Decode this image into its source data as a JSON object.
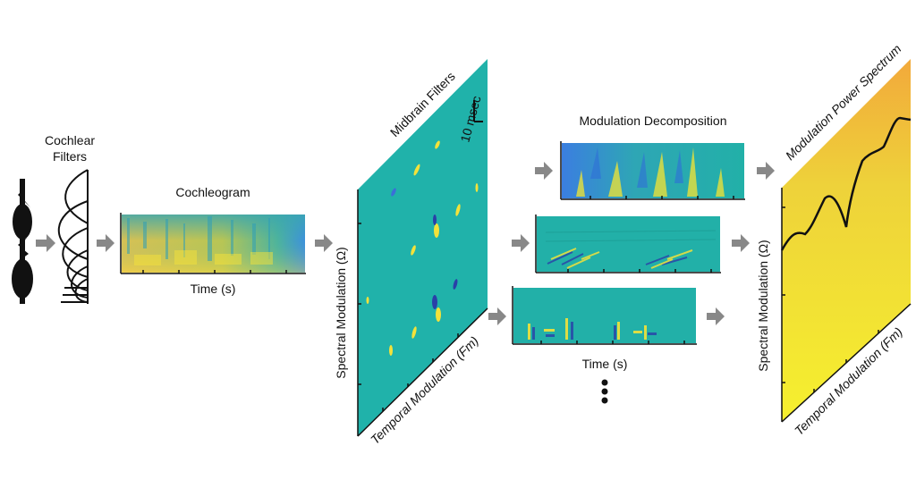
{
  "labels": {
    "cochlear_filters_line1": "Cochlear",
    "cochlear_filters_line2": "Filters",
    "cochleogram": "Cochleogram",
    "time_axis": "Time (s)",
    "midbrain_filters": "Midbrain Filters",
    "scale_bar": "10 msec",
    "spectral_modulation": "Spectral Modulation (Ω)",
    "temporal_modulation": "Temporal Modulation (Fm)",
    "modulation_decomposition": "Modulation Decomposition",
    "decomposition_time_axis": "Time (s)",
    "modulation_power_spectrum": "Modulation Power Spectrum",
    "mps_spectral_modulation": "Spectral Modulation (Ω)",
    "mps_temporal_modulation": "Temporal Modulation (Fm)"
  },
  "colors": {
    "teal": "#20b2aa",
    "blue": "#3b7ee0",
    "yellow": "#f5e52a",
    "orange": "#f2a93b",
    "arrow": "#888888",
    "ink": "#111111"
  }
}
